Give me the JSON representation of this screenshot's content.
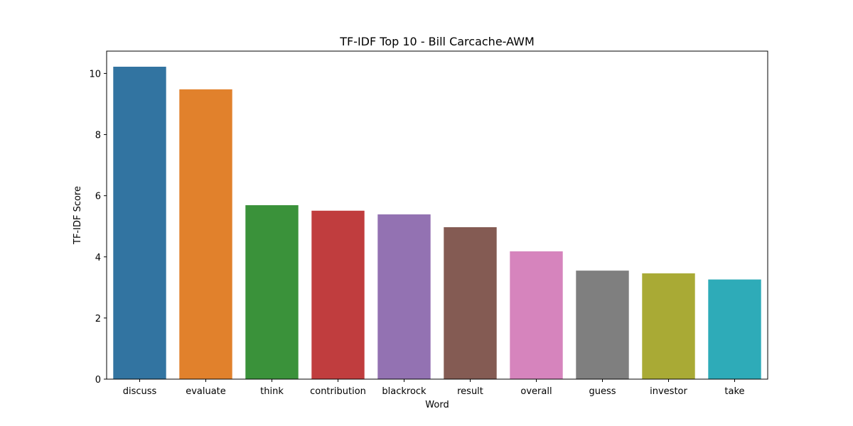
{
  "chart_data": {
    "type": "bar",
    "title": "TF-IDF Top 10 - Bill Carcache-AWM",
    "xlabel": "Word",
    "ylabel": "TF-IDF Score",
    "categories": [
      "discuss",
      "evaluate",
      "think",
      "contribution",
      "blackrock",
      "result",
      "overall",
      "guess",
      "investor",
      "take"
    ],
    "values": [
      10.22,
      9.48,
      5.69,
      5.51,
      5.39,
      4.97,
      4.18,
      3.55,
      3.46,
      3.26
    ],
    "colors": [
      "#3274a1",
      "#e1812c",
      "#3a923a",
      "#c03d3e",
      "#9372b2",
      "#845b53",
      "#d684bd",
      "#7f7f7f",
      "#a9aa35",
      "#2eabb8"
    ],
    "ylim": [
      0,
      10.73
    ],
    "yticks": [
      0,
      2,
      4,
      6,
      8,
      10
    ],
    "grid": false,
    "legend": "none"
  }
}
